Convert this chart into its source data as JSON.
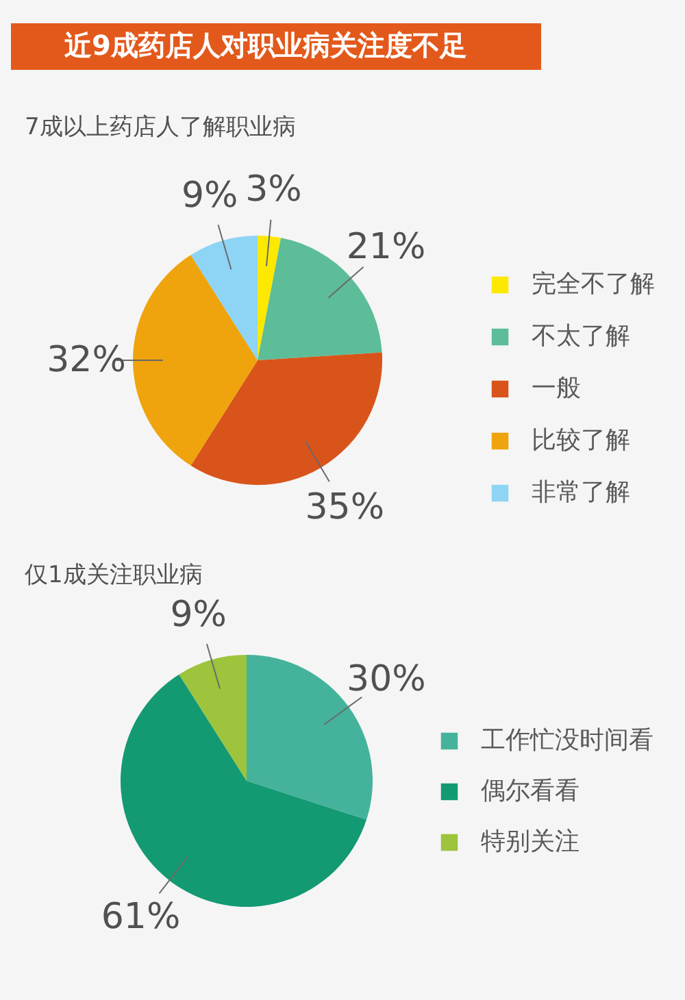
{
  "chart_data": [
    {
      "type": "pie",
      "title": "近9成药店人对职业病关注度不足",
      "subtitle": "7成以上药店人了解职业病",
      "categories": [
        "完全不了解",
        "不太了解",
        "一般",
        "比较了解",
        "非常了解"
      ],
      "values": [
        3,
        21,
        35,
        32,
        9
      ],
      "colors": [
        "#fde800",
        "#5cbd98",
        "#d9541a",
        "#efa30c",
        "#8ed4f5"
      ],
      "value_labels": [
        "3%",
        "21%",
        "35%",
        "32%",
        "9%"
      ],
      "legend": "right"
    },
    {
      "type": "pie",
      "title": "仅1成关注职业病",
      "categories": [
        "工作忙没时间看",
        "偶尔看看",
        "特别关注"
      ],
      "values": [
        30,
        61,
        9
      ],
      "colors": [
        "#45b39b",
        "#139a73",
        "#9dc43c"
      ],
      "value_labels": [
        "30%",
        "61%",
        "9%"
      ],
      "legend": "right"
    }
  ]
}
